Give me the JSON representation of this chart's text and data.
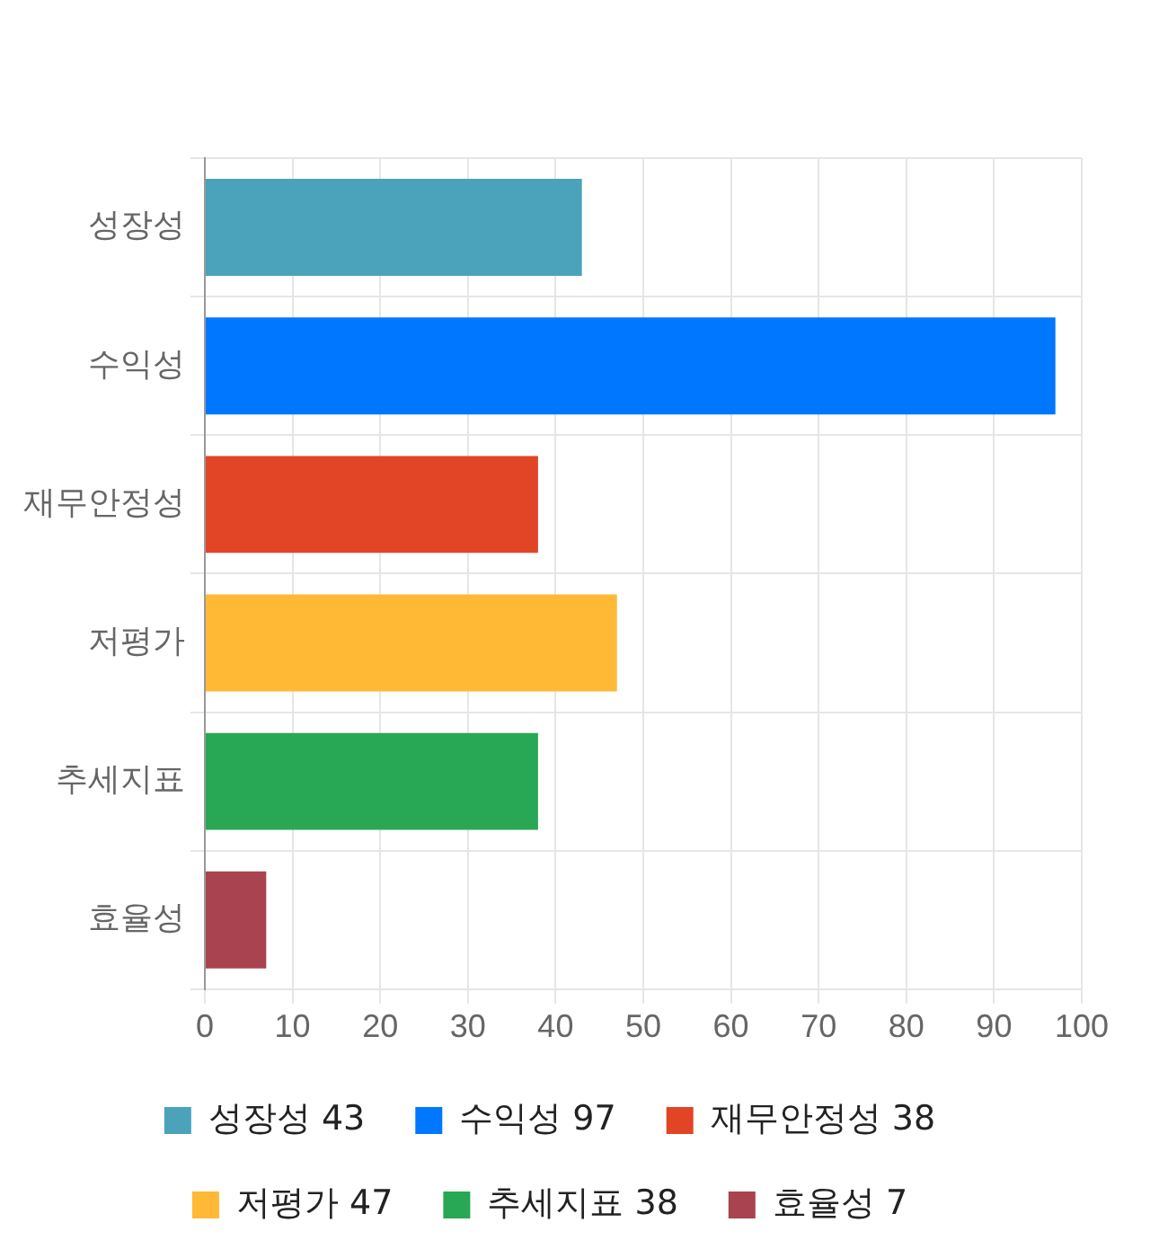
{
  "chart_data": {
    "type": "bar",
    "orientation": "horizontal",
    "categories": [
      "성장성",
      "수익성",
      "재무안정성",
      "저평가",
      "추세지표",
      "효율성"
    ],
    "series": [
      {
        "name": "성장성 43",
        "color": "#4aa3bb",
        "values": [
          43,
          null,
          null,
          null,
          null,
          null
        ]
      },
      {
        "name": "수익성 97",
        "color": "#0077ff",
        "values": [
          null,
          97,
          null,
          null,
          null,
          null
        ]
      },
      {
        "name": "재무안정성 38",
        "color": "#e24426",
        "values": [
          null,
          null,
          38,
          null,
          null,
          null
        ]
      },
      {
        "name": "저평가 47",
        "color": "#ffb935",
        "values": [
          null,
          null,
          null,
          47,
          null,
          null
        ]
      },
      {
        "name": "추세지표 38",
        "color": "#28a755",
        "values": [
          null,
          null,
          null,
          null,
          38,
          null
        ]
      },
      {
        "name": "효율성 7",
        "color": "#a8434f",
        "values": [
          null,
          null,
          null,
          null,
          null,
          7
        ]
      }
    ],
    "xlim": [
      0,
      100
    ],
    "xticks": [
      0,
      10,
      20,
      30,
      40,
      50,
      60,
      70,
      80,
      90,
      100
    ],
    "grid": true,
    "legend": "bottom"
  }
}
